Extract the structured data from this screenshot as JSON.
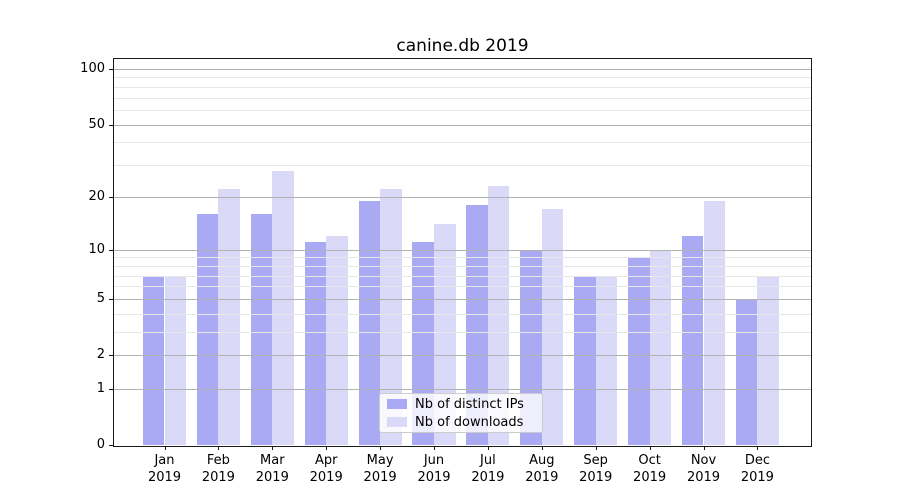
{
  "title": "canine.db 2019",
  "chart_data": {
    "type": "bar",
    "title": "canine.db 2019",
    "categories": [
      "Jan",
      "Feb",
      "Mar",
      "Apr",
      "May",
      "Jun",
      "Jul",
      "Aug",
      "Sep",
      "Oct",
      "Nov",
      "Dec"
    ],
    "category_year": "2019",
    "series": [
      {
        "name": "Nb of distinct IPs",
        "color": "#a9a9f4",
        "values": [
          7,
          16,
          16,
          11,
          19,
          11,
          18,
          10,
          7,
          9,
          12,
          5
        ]
      },
      {
        "name": "Nb of downloads",
        "color": "#dadaf8",
        "values": [
          7,
          22,
          28,
          12,
          22,
          14,
          23,
          17,
          7,
          10,
          19,
          7
        ]
      }
    ],
    "xlabel": "",
    "ylabel": "",
    "y_axis": {
      "scale": "log1p",
      "ylim": [
        0,
        113
      ],
      "major_ticks": [
        0,
        1,
        2,
        5,
        10,
        20,
        50,
        100
      ],
      "minor_gridlines": [
        3,
        4,
        6,
        7,
        8,
        9,
        30,
        40,
        60,
        70,
        80,
        90
      ]
    },
    "grid": true,
    "legend": {
      "position": "lower center",
      "entries": [
        "Nb of distinct IPs",
        "Nb of downloads"
      ]
    }
  },
  "colors": {
    "bar_distinct_ips": "#a9a9f4",
    "bar_downloads": "#dadaf8",
    "gridline_major": "#b2b2b2",
    "gridline_minor": "#e7e7e7",
    "spine": "#1a1a1a",
    "background": "#ffffff"
  }
}
